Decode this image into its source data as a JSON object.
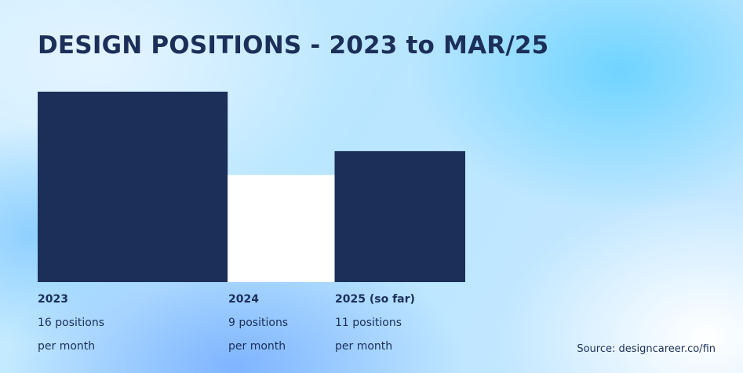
{
  "title": "DESIGN POSITIONS - 2023 to MAR/25",
  "source": "Source: designcareer.co/fin",
  "colors": {
    "text": "#1b2f59",
    "bar_dark": "#1b2f59",
    "bar_light": "#ffffff"
  },
  "chart_data": {
    "type": "bar",
    "title": "DESIGN POSITIONS - 2023 to MAR/25",
    "categories": [
      "2023",
      "2024",
      "2025 (so far)"
    ],
    "values": [
      16,
      9,
      11
    ],
    "unit": "positions per month",
    "value_labels": [
      "16 positions",
      "9 positions",
      "11 positions"
    ],
    "sublabel": "per month",
    "bar_colors": [
      "#1b2f59",
      "#ffffff",
      "#1b2f59"
    ],
    "grid": false,
    "legend": "none"
  }
}
